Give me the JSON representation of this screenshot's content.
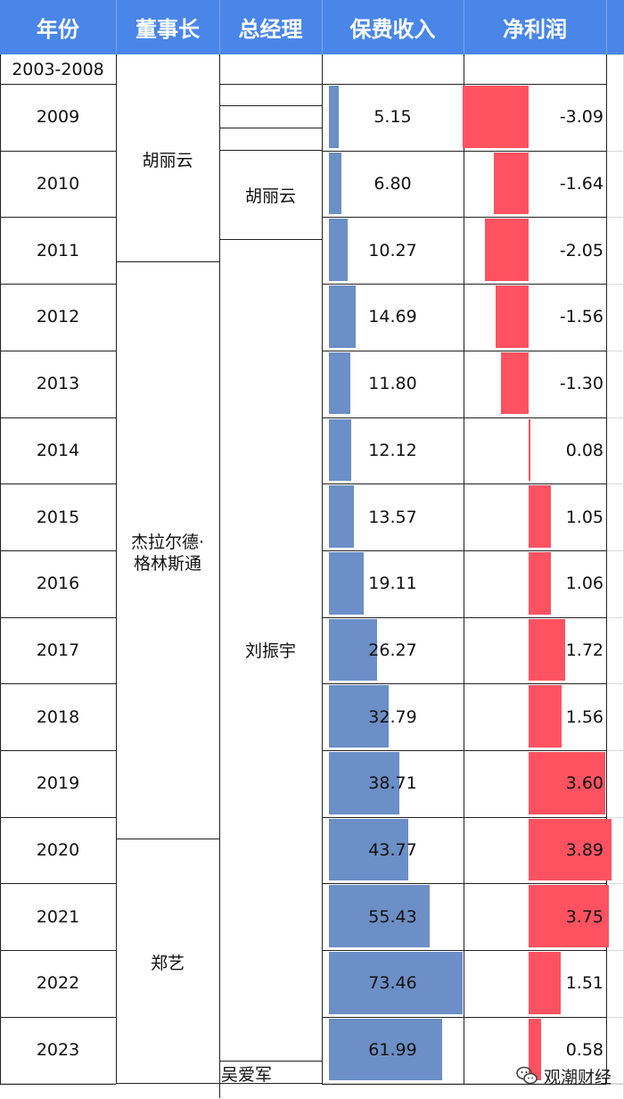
{
  "header": {
    "year": "年份",
    "chairman": "董事长",
    "general_manager": "总经理",
    "premium_income": "保费收入",
    "net_profit": "净利润"
  },
  "first_row_label": "2003-2008",
  "chairman_groups": [
    {
      "name": "胡丽云",
      "start_year": "2003-2008",
      "end_year": "2011"
    },
    {
      "name": "杰拉尔德·\n格林斯通",
      "start_year": "2012",
      "end_year": "2020 (partial)"
    },
    {
      "name": "郑艺",
      "start_year": "2020",
      "end_year": "2023"
    }
  ],
  "gm_groups": [
    {
      "name": "胡丽云",
      "years": "2010-2011 (partial)"
    },
    {
      "name": "刘振宇",
      "years": "2011-2023"
    },
    {
      "name": "吴爱军",
      "years": "after 2023"
    }
  ],
  "watermark": {
    "icon": "wechat-icon",
    "text": "观潮财经"
  },
  "colors": {
    "header_bg": "#4a86e8",
    "revenue_bar": "#6b8fc6",
    "profit_bar": "#ff5261"
  },
  "chart_data": {
    "type": "table",
    "columns": [
      "年份",
      "董事长",
      "总经理",
      "保费收入",
      "净利润"
    ],
    "years": [
      "2009",
      "2010",
      "2011",
      "2012",
      "2013",
      "2014",
      "2015",
      "2016",
      "2017",
      "2018",
      "2019",
      "2020",
      "2021",
      "2022",
      "2023"
    ],
    "premium_income": [
      5.15,
      6.8,
      10.27,
      14.69,
      11.8,
      12.12,
      13.57,
      19.11,
      26.27,
      32.79,
      38.71,
      43.77,
      55.43,
      73.46,
      61.99
    ],
    "premium_income_labels": [
      "5.15",
      "6.80",
      "10.27",
      "14.69",
      "11.80",
      "12.12",
      "13.57",
      "19.11",
      "26.27",
      "32.79",
      "38.71",
      "43.77",
      "55.43",
      "73.46",
      "61.99"
    ],
    "net_profit": [
      -3.09,
      -1.64,
      -2.05,
      -1.56,
      -1.3,
      0.08,
      1.05,
      1.06,
      1.72,
      1.56,
      3.6,
      3.89,
      3.75,
      1.51,
      0.58
    ],
    "net_profit_labels": [
      "-3.09",
      "-1.64",
      "-2.05",
      "-1.56",
      "-1.30",
      "0.08",
      "1.05",
      "1.06",
      "1.72",
      "1.56",
      "3.60",
      "3.89",
      "3.75",
      "1.51",
      "0.58"
    ]
  }
}
